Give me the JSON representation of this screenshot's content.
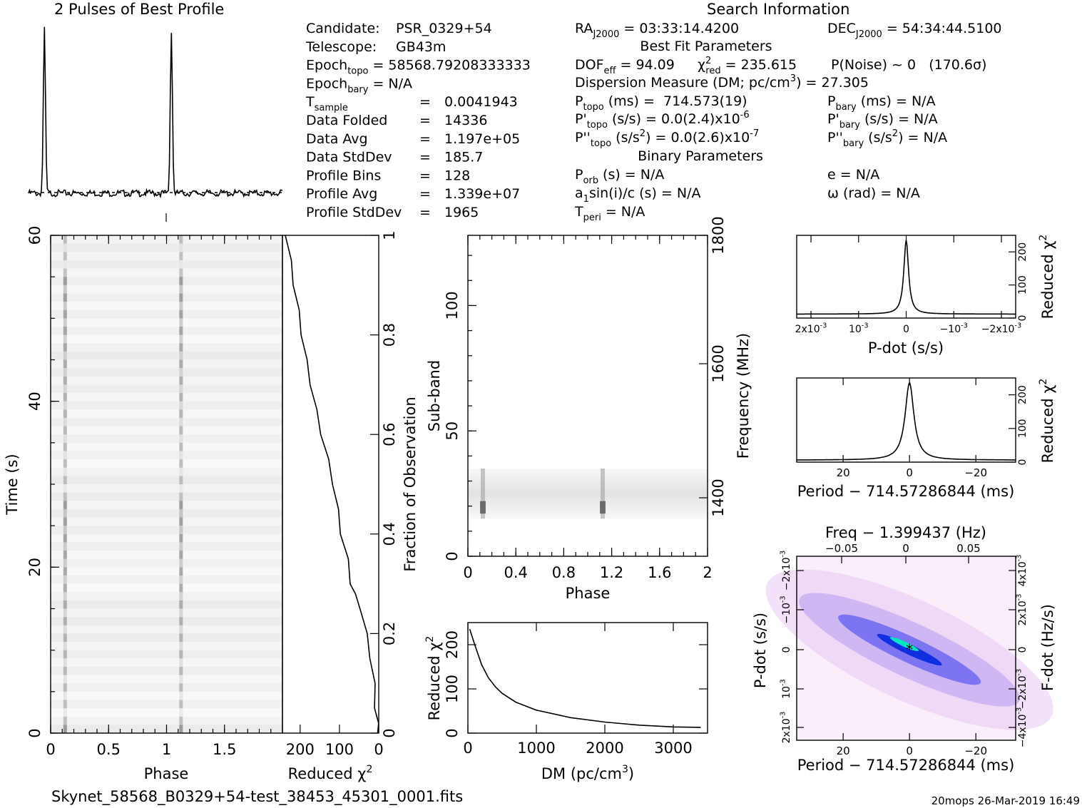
{
  "title": "2 Pulses of Best Profile",
  "search_info_title": "Search Information",
  "footer": {
    "filename": "Skynet_58568_B0329+54-test_38453_45301_0001.fits",
    "stamp": "20mops 26-Mar-2019 16:49"
  },
  "info_left": [
    {
      "key": "Candidate:",
      "sub": "",
      "op": "",
      "val": "PSR_0329+54"
    },
    {
      "key": "Telescope:",
      "sub": "",
      "op": "",
      "val": "GB43m"
    },
    {
      "key": "Epoch",
      "sub": "topo",
      "op": "=",
      "val": "58568.79208333333"
    },
    {
      "key": "Epoch",
      "sub": "bary",
      "op": "=",
      "val": "N/A"
    },
    {
      "key": "T",
      "sub": "sample",
      "op": "=",
      "val": "0.0041943"
    },
    {
      "key": "Data Folded",
      "sub": "",
      "op": "=",
      "val": "14336"
    },
    {
      "key": "Data Avg",
      "sub": "",
      "op": "=",
      "val": "1.197e+05"
    },
    {
      "key": "Data StdDev",
      "sub": "",
      "op": "=",
      "val": "185.7"
    },
    {
      "key": "Profile Bins",
      "sub": "",
      "op": "=",
      "val": "128"
    },
    {
      "key": "Profile Avg",
      "sub": "",
      "op": "=",
      "val": "1.339e+07"
    },
    {
      "key": "Profile StdDev",
      "sub": "",
      "op": "=",
      "val": "1965"
    }
  ],
  "info_mid": {
    "ra": {
      "key": "RA",
      "sub": "J2000",
      "val": "= 03:33:14.4200"
    },
    "best_fit_title": "Best Fit Parameters",
    "dof": {
      "key": "DOF",
      "sub": "eff",
      "val": "= 94.09"
    },
    "chi": {
      "key": "χ",
      "sup": "2",
      "sub": "red",
      "val": "= 235.615"
    },
    "pnoise": "P(Noise) ~ 0   (170.6σ)",
    "dm": {
      "text": "Dispersion Measure (DM; pc/cm",
      "sup": "3",
      "tail": ") = 27.305"
    },
    "ptopo": {
      "key": "P",
      "sub": "topo",
      "val": "(ms) =  714.573(19)"
    },
    "pdtopo": {
      "key": "P'",
      "sub": "topo",
      "val": "(s/s) = 0.0(2.4)x10",
      "sup": "-6"
    },
    "pddtopo": {
      "key": "P''",
      "sub": "topo",
      "val": "(s/s",
      "sup1": "2",
      "val2": ") = 0.0(2.6)x10",
      "sup2": "-7"
    },
    "binary_title": "Binary Parameters",
    "porb": {
      "key": "P",
      "sub": "orb",
      "val": "(s) = N/A"
    },
    "a1": {
      "key": "a",
      "sub": "1",
      "val": "sin(i)/c (s) = N/A"
    },
    "tperi": {
      "key": "T",
      "sub": "peri",
      "val": "= N/A"
    }
  },
  "info_right": {
    "dec": {
      "key": "DEC",
      "sub": "J2000",
      "val": "= 54:34:44.5100"
    },
    "pbary": {
      "key": "P",
      "sub": "bary",
      "val": "(ms) = N/A"
    },
    "pdbary": {
      "key": "P'",
      "sub": "bary",
      "val": "(s/s) = N/A"
    },
    "pddbary": {
      "key": "P''",
      "sub": "bary",
      "val": "(s/s",
      "sup": "2",
      "val2": ") = N/A"
    },
    "e": "e = N/A",
    "omega": "ω (rad) = N/A"
  },
  "chart_data": [
    {
      "id": "profile",
      "type": "line",
      "title": "2 Pulses of Best Profile",
      "x": {
        "range": [
          0,
          2
        ]
      },
      "peaks": [
        0.125,
        1.125
      ],
      "peak_value": 1.0,
      "baseline": 0.0
    },
    {
      "id": "time-phase",
      "type": "heatmap",
      "xlabel": "Phase",
      "ylabel": "Time (s)",
      "x": {
        "range": [
          0,
          2
        ],
        "ticks": [
          "0",
          "0.5",
          "1",
          "1.5"
        ]
      },
      "y": {
        "range": [
          0,
          60
        ],
        "ticks": [
          "0",
          "20",
          "40",
          "60"
        ]
      },
      "pulse_phases": [
        0.125,
        1.125
      ]
    },
    {
      "id": "reduced-chi-vs-fraction",
      "type": "line",
      "xlabel": "Reduced χ",
      "xlabel_sup": "2",
      "ylabel": "Fraction of Observation",
      "x": {
        "range": [
          245,
          0
        ],
        "ticks": [
          "200",
          "100",
          "0"
        ]
      },
      "y": {
        "range": [
          0,
          1
        ],
        "ticks": [
          "0",
          "0.2",
          "0.4",
          "0.6",
          "0.8",
          "1"
        ]
      },
      "points": [
        [
          0,
          0
        ],
        [
          3,
          0.02
        ],
        [
          8,
          0.05
        ],
        [
          12,
          0.1
        ],
        [
          20,
          0.15
        ],
        [
          32,
          0.2
        ],
        [
          45,
          0.25
        ],
        [
          62,
          0.28
        ],
        [
          70,
          0.3
        ],
        [
          80,
          0.35
        ],
        [
          95,
          0.4
        ],
        [
          105,
          0.45
        ],
        [
          115,
          0.5
        ],
        [
          130,
          0.55
        ],
        [
          145,
          0.6
        ],
        [
          160,
          0.65
        ],
        [
          172,
          0.7
        ],
        [
          185,
          0.75
        ],
        [
          195,
          0.8
        ],
        [
          205,
          0.85
        ],
        [
          215,
          0.9
        ],
        [
          225,
          0.95
        ],
        [
          235,
          1.0
        ]
      ]
    },
    {
      "id": "subband-phase",
      "type": "heatmap",
      "xlabel": "Phase",
      "ylabel": "Sub-band",
      "y2label": "Frequency (MHz)",
      "x": {
        "range": [
          0,
          2
        ],
        "ticks": [
          "0",
          "0.4",
          "0.8",
          "1.2",
          "1.6",
          "2"
        ]
      },
      "y": {
        "range": [
          0,
          128
        ],
        "ticks": [
          "0",
          "50",
          "100"
        ]
      },
      "y2": {
        "ticks": [
          "1400",
          "1600",
          "1800"
        ]
      },
      "band": [
        15,
        35
      ],
      "pulse_phases": [
        0.125,
        1.125
      ]
    },
    {
      "id": "dm-curve",
      "type": "line",
      "xlabel": "DM (pc/cm",
      "xlabel_sup": "3",
      "xlabel_tail": ")",
      "ylabel": "Reduced χ",
      "ylabel_sup": "2",
      "x": {
        "range": [
          0,
          3500
        ],
        "ticks": [
          "0",
          "1000",
          "2000",
          "3000"
        ]
      },
      "y": {
        "range": [
          0,
          250
        ],
        "ticks": [
          "0",
          "100",
          "200"
        ]
      },
      "points": [
        [
          27,
          235
        ],
        [
          100,
          200
        ],
        [
          200,
          155
        ],
        [
          300,
          125
        ],
        [
          400,
          105
        ],
        [
          500,
          90
        ],
        [
          700,
          70
        ],
        [
          1000,
          52
        ],
        [
          1500,
          35
        ],
        [
          2000,
          25
        ],
        [
          2500,
          18
        ],
        [
          3000,
          14
        ],
        [
          3400,
          13
        ]
      ]
    },
    {
      "id": "pdot-curve",
      "type": "line",
      "xlabel": "P-dot (s/s)",
      "ylabel": "Reduced χ",
      "ylabel_sup": "2",
      "x": {
        "range": [
          0.0023,
          -0.0023
        ],
        "ticks": [
          "2x10",
          "10",
          "0",
          "−10",
          "−2x10"
        ],
        "tick_sups": [
          "-3",
          "-3",
          "",
          "-3",
          "-3"
        ]
      },
      "y": {
        "range": [
          0,
          250
        ],
        "ticks": [
          "0",
          "100",
          "200"
        ]
      },
      "peak_value": 235.6,
      "floor": 12
    },
    {
      "id": "period-curve",
      "type": "line",
      "xlabel": "Period − 714.57286844 (ms)",
      "ylabel": "Reduced χ",
      "ylabel_sup": "2",
      "x": {
        "range": [
          34,
          -32
        ],
        "ticks": [
          "20",
          "0",
          "−20"
        ]
      },
      "y": {
        "range": [
          0,
          250
        ],
        "ticks": [
          "0",
          "100",
          "200"
        ]
      },
      "peak_value": 235.6,
      "floor": 6
    },
    {
      "id": "pp-dot-plane",
      "type": "heatmap",
      "title": "Freq − 1.399437 (Hz)",
      "xlabel": "Period − 714.57286844 (ms)",
      "ylabel": "P-dot (s/s)",
      "y2label": "F-dot (Hz/s)",
      "x": {
        "range": [
          34,
          -32
        ],
        "ticks": [
          "20",
          "0",
          "−20"
        ]
      },
      "x2": {
        "ticks": [
          "−0.05",
          "0",
          "0.05"
        ]
      },
      "y": {
        "ticks": [
          "2x10",
          "10",
          "0",
          "−10",
          "−2x10"
        ],
        "tick_sups": [
          "-3",
          "-3",
          "",
          "-3",
          "-3"
        ]
      },
      "y2": {
        "ticks": [
          "−4x10",
          "−2x10",
          "0",
          "2x10",
          "4x10"
        ],
        "tick_sups": [
          "-3",
          "-3",
          "",
          "-3",
          "-3"
        ]
      },
      "best_point": [
        0,
        0
      ]
    }
  ]
}
